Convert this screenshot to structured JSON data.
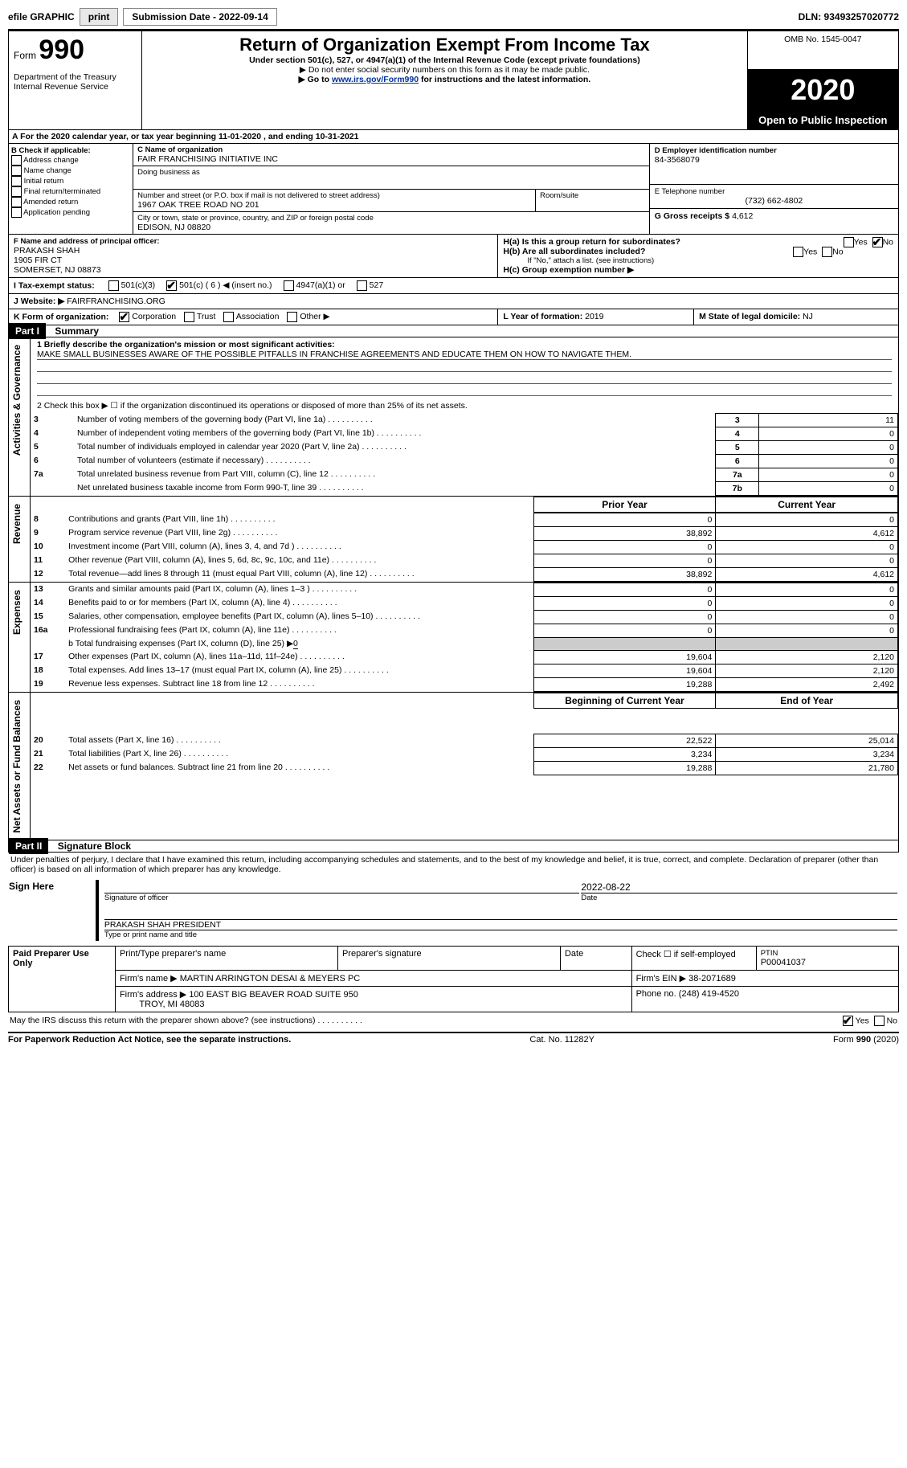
{
  "top": {
    "efile_label": "efile GRAPHIC",
    "print_btn": "print",
    "submission_label": "Submission Date - 2022-09-14",
    "dln": "DLN: 93493257020772"
  },
  "header": {
    "form_word": "Form",
    "form_num": "990",
    "dept1": "Department of the Treasury",
    "dept2": "Internal Revenue Service",
    "title": "Return of Organization Exempt From Income Tax",
    "subtitle": "Under section 501(c), 527, or 4947(a)(1) of the Internal Revenue Code (except private foundations)",
    "note1": "▶ Do not enter social security numbers on this form as it may be made public.",
    "note2_pre": "▶ Go to ",
    "note2_link": "www.irs.gov/Form990",
    "note2_post": " for instructions and the latest information.",
    "omb": "OMB No. 1545-0047",
    "year": "2020",
    "open_public": "Open to Public Inspection"
  },
  "line_a": "A  For the 2020 calendar year, or tax year beginning 11-01-2020   , and ending 10-31-2021",
  "box_b": {
    "title": "B Check if applicable:",
    "opts": [
      "Address change",
      "Name change",
      "Initial return",
      "Final return/terminated",
      "Amended return",
      "Application pending"
    ]
  },
  "box_c": {
    "name_label": "C Name of organization",
    "name": "FAIR FRANCHISING INITIATIVE INC",
    "dba_label": "Doing business as",
    "addr_label": "Number and street (or P.O. box if mail is not delivered to street address)",
    "addr": "1967 OAK TREE ROAD NO 201",
    "room_label": "Room/suite",
    "city_label": "City or town, state or province, country, and ZIP or foreign postal code",
    "city": "EDISON, NJ  08820"
  },
  "box_d": {
    "label": "D Employer identification number",
    "ein": "84-3568079"
  },
  "box_e": {
    "label": "E Telephone number",
    "phone": "(732) 662-4802"
  },
  "box_g": {
    "label": "G Gross receipts $",
    "amount": "4,612"
  },
  "box_f": {
    "label": "F  Name and address of principal officer:",
    "name": "PRAKASH SHAH",
    "addr1": "1905 FIR CT",
    "addr2": "SOMERSET, NJ  08873"
  },
  "box_h": {
    "ha": "H(a)  Is this a group return for subordinates?",
    "hb": "H(b)  Are all subordinates included?",
    "yes": "Yes",
    "no": "No",
    "hb_note": "If \"No,\" attach a list. (see instructions)",
    "hc": "H(c)  Group exemption number ▶"
  },
  "line_i": {
    "label": "I    Tax-exempt status:",
    "opts": [
      "501(c)(3)",
      "501(c) ( 6 ) ◀ (insert no.)",
      "4947(a)(1) or",
      "527"
    ],
    "checked_index": 1
  },
  "line_j": {
    "label": "J    Website: ▶",
    "site": "FAIRFRANCHISING.ORG"
  },
  "line_k": {
    "label": "K Form of organization:",
    "opts": [
      "Corporation",
      "Trust",
      "Association",
      "Other ▶"
    ],
    "checked_index": 0
  },
  "line_l": {
    "label": "L Year of formation:",
    "val": "2019"
  },
  "line_m": {
    "label": "M State of legal domicile:",
    "val": "NJ"
  },
  "part1": {
    "label": "Part I",
    "title": "Summary"
  },
  "mission": {
    "q": "1  Briefly describe the organization's mission or most significant activities:",
    "text": "MAKE SMALL BUSINESSES AWARE OF THE POSSIBLE PITFALLS IN FRANCHISE AGREEMENTS AND EDUCATE THEM ON HOW TO NAVIGATE THEM."
  },
  "line2": "2    Check this box ▶ ☐  if the organization discontinued its operations or disposed of more than 25% of its net assets.",
  "sections": {
    "gov": "Activities & Governance",
    "rev": "Revenue",
    "exp": "Expenses",
    "net": "Net Assets or Fund Balances"
  },
  "gov_rows": [
    {
      "n": "3",
      "t": "Number of voting members of the governing body (Part VI, line 1a)",
      "b": "3",
      "v": "11"
    },
    {
      "n": "4",
      "t": "Number of independent voting members of the governing body (Part VI, line 1b)",
      "b": "4",
      "v": "0"
    },
    {
      "n": "5",
      "t": "Total number of individuals employed in calendar year 2020 (Part V, line 2a)",
      "b": "5",
      "v": "0"
    },
    {
      "n": "6",
      "t": "Total number of volunteers (estimate if necessary)",
      "b": "6",
      "v": "0"
    },
    {
      "n": "7a",
      "t": "Total unrelated business revenue from Part VIII, column (C), line 12",
      "b": "7a",
      "v": "0"
    },
    {
      "n": "",
      "t": "Net unrelated business taxable income from Form 990-T, line 39",
      "b": "7b",
      "v": "0"
    }
  ],
  "py_label": "Prior Year",
  "cy_label": "Current Year",
  "rev_rows": [
    {
      "n": "8",
      "t": "Contributions and grants (Part VIII, line 1h)",
      "p": "0",
      "c": "0"
    },
    {
      "n": "9",
      "t": "Program service revenue (Part VIII, line 2g)",
      "p": "38,892",
      "c": "4,612"
    },
    {
      "n": "10",
      "t": "Investment income (Part VIII, column (A), lines 3, 4, and 7d )",
      "p": "0",
      "c": "0"
    },
    {
      "n": "11",
      "t": "Other revenue (Part VIII, column (A), lines 5, 6d, 8c, 9c, 10c, and 11e)",
      "p": "0",
      "c": "0"
    },
    {
      "n": "12",
      "t": "Total revenue—add lines 8 through 11 (must equal Part VIII, column (A), line 12)",
      "p": "38,892",
      "c": "4,612"
    }
  ],
  "exp_rows": [
    {
      "n": "13",
      "t": "Grants and similar amounts paid (Part IX, column (A), lines 1–3 )",
      "p": "0",
      "c": "0"
    },
    {
      "n": "14",
      "t": "Benefits paid to or for members (Part IX, column (A), line 4)",
      "p": "0",
      "c": "0"
    },
    {
      "n": "15",
      "t": "Salaries, other compensation, employee benefits (Part IX, column (A), lines 5–10)",
      "p": "0",
      "c": "0"
    },
    {
      "n": "16a",
      "t": "Professional fundraising fees (Part IX, column (A), line 11e)",
      "p": "0",
      "c": "0"
    }
  ],
  "exp_b_pre": "b  Total fundraising expenses (Part IX, column (D), line 25) ▶",
  "exp_b_val": "0",
  "exp_rows2": [
    {
      "n": "17",
      "t": "Other expenses (Part IX, column (A), lines 11a–11d, 11f–24e)",
      "p": "19,604",
      "c": "2,120"
    },
    {
      "n": "18",
      "t": "Total expenses. Add lines 13–17 (must equal Part IX, column (A), line 25)",
      "p": "19,604",
      "c": "2,120"
    },
    {
      "n": "19",
      "t": "Revenue less expenses. Subtract line 18 from line 12",
      "p": "19,288",
      "c": "2,492"
    }
  ],
  "boy_label": "Beginning of Current Year",
  "eoy_label": "End of Year",
  "net_rows": [
    {
      "n": "20",
      "t": "Total assets (Part X, line 16)",
      "p": "22,522",
      "c": "25,014"
    },
    {
      "n": "21",
      "t": "Total liabilities (Part X, line 26)",
      "p": "3,234",
      "c": "3,234"
    },
    {
      "n": "22",
      "t": "Net assets or fund balances. Subtract line 21 from line 20",
      "p": "19,288",
      "c": "21,780"
    }
  ],
  "part2": {
    "label": "Part II",
    "title": "Signature Block"
  },
  "penalty": "Under penalties of perjury, I declare that I have examined this return, including accompanying schedules and statements, and to the best of my knowledge and belief, it is true, correct, and complete. Declaration of preparer (other than officer) is based on all information of which preparer has any knowledge.",
  "sign": {
    "label": "Sign Here",
    "sig_of": "Signature of officer",
    "date": "Date",
    "date_val": "2022-08-22",
    "name": "PRAKASH SHAH  PRESIDENT",
    "name_lbl": "Type or print name and title"
  },
  "paid": {
    "label": "Paid Preparer Use Only",
    "h": [
      "Print/Type preparer's name",
      "Preparer's signature",
      "Date"
    ],
    "self": "Check ☐ if self-employed",
    "ptin_lbl": "PTIN",
    "ptin": "P00041037",
    "firm_lbl": "Firm's name   ▶",
    "firm": "MARTIN ARRINGTON DESAI & MEYERS PC",
    "ein_lbl": "Firm's EIN ▶",
    "ein": "38-2071689",
    "addr_lbl": "Firm's address ▶",
    "addr1": "100 EAST BIG BEAVER ROAD SUITE 950",
    "addr2": "TROY, MI  48083",
    "phone_lbl": "Phone no.",
    "phone": "(248) 419-4520"
  },
  "discuss": "May the IRS discuss this return with the preparer shown above? (see instructions)",
  "footer": {
    "l": "For Paperwork Reduction Act Notice, see the separate instructions.",
    "c": "Cat. No. 11282Y",
    "r": "Form 990 (2020)"
  }
}
